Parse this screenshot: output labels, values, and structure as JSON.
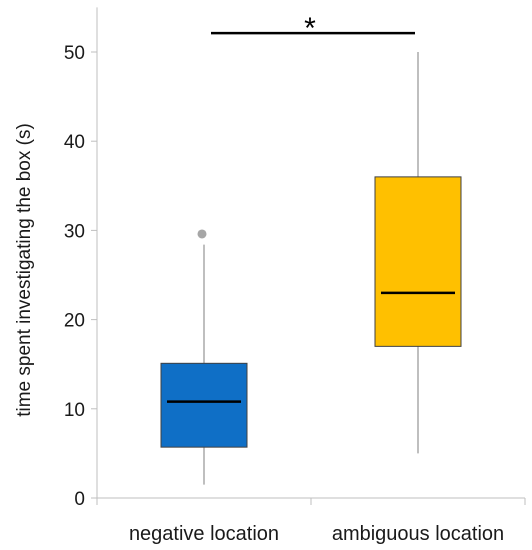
{
  "chart_data": {
    "type": "boxplot",
    "ylabel": "time spent investigating the box (s)",
    "ylim": [
      0,
      55
    ],
    "yticks": [
      0,
      10,
      20,
      30,
      40,
      50
    ],
    "categories": [
      "negative location",
      "ambiguous location"
    ],
    "boxes": [
      {
        "category": "negative location",
        "min": 1.5,
        "q1": 5.7,
        "median": 10.8,
        "q3": 15.1,
        "max": 28.4,
        "outliers": [
          29.6
        ],
        "color": "#0f6fc6"
      },
      {
        "category": "ambiguous location",
        "min": 5.0,
        "q1": 17.0,
        "median": 23.0,
        "q3": 36.0,
        "max": 50.0,
        "outliers": [],
        "color": "#ffc000"
      }
    ],
    "significance": {
      "between": [
        0,
        1
      ],
      "y": 52,
      "label": "*"
    },
    "grid": false,
    "legend": "none"
  }
}
